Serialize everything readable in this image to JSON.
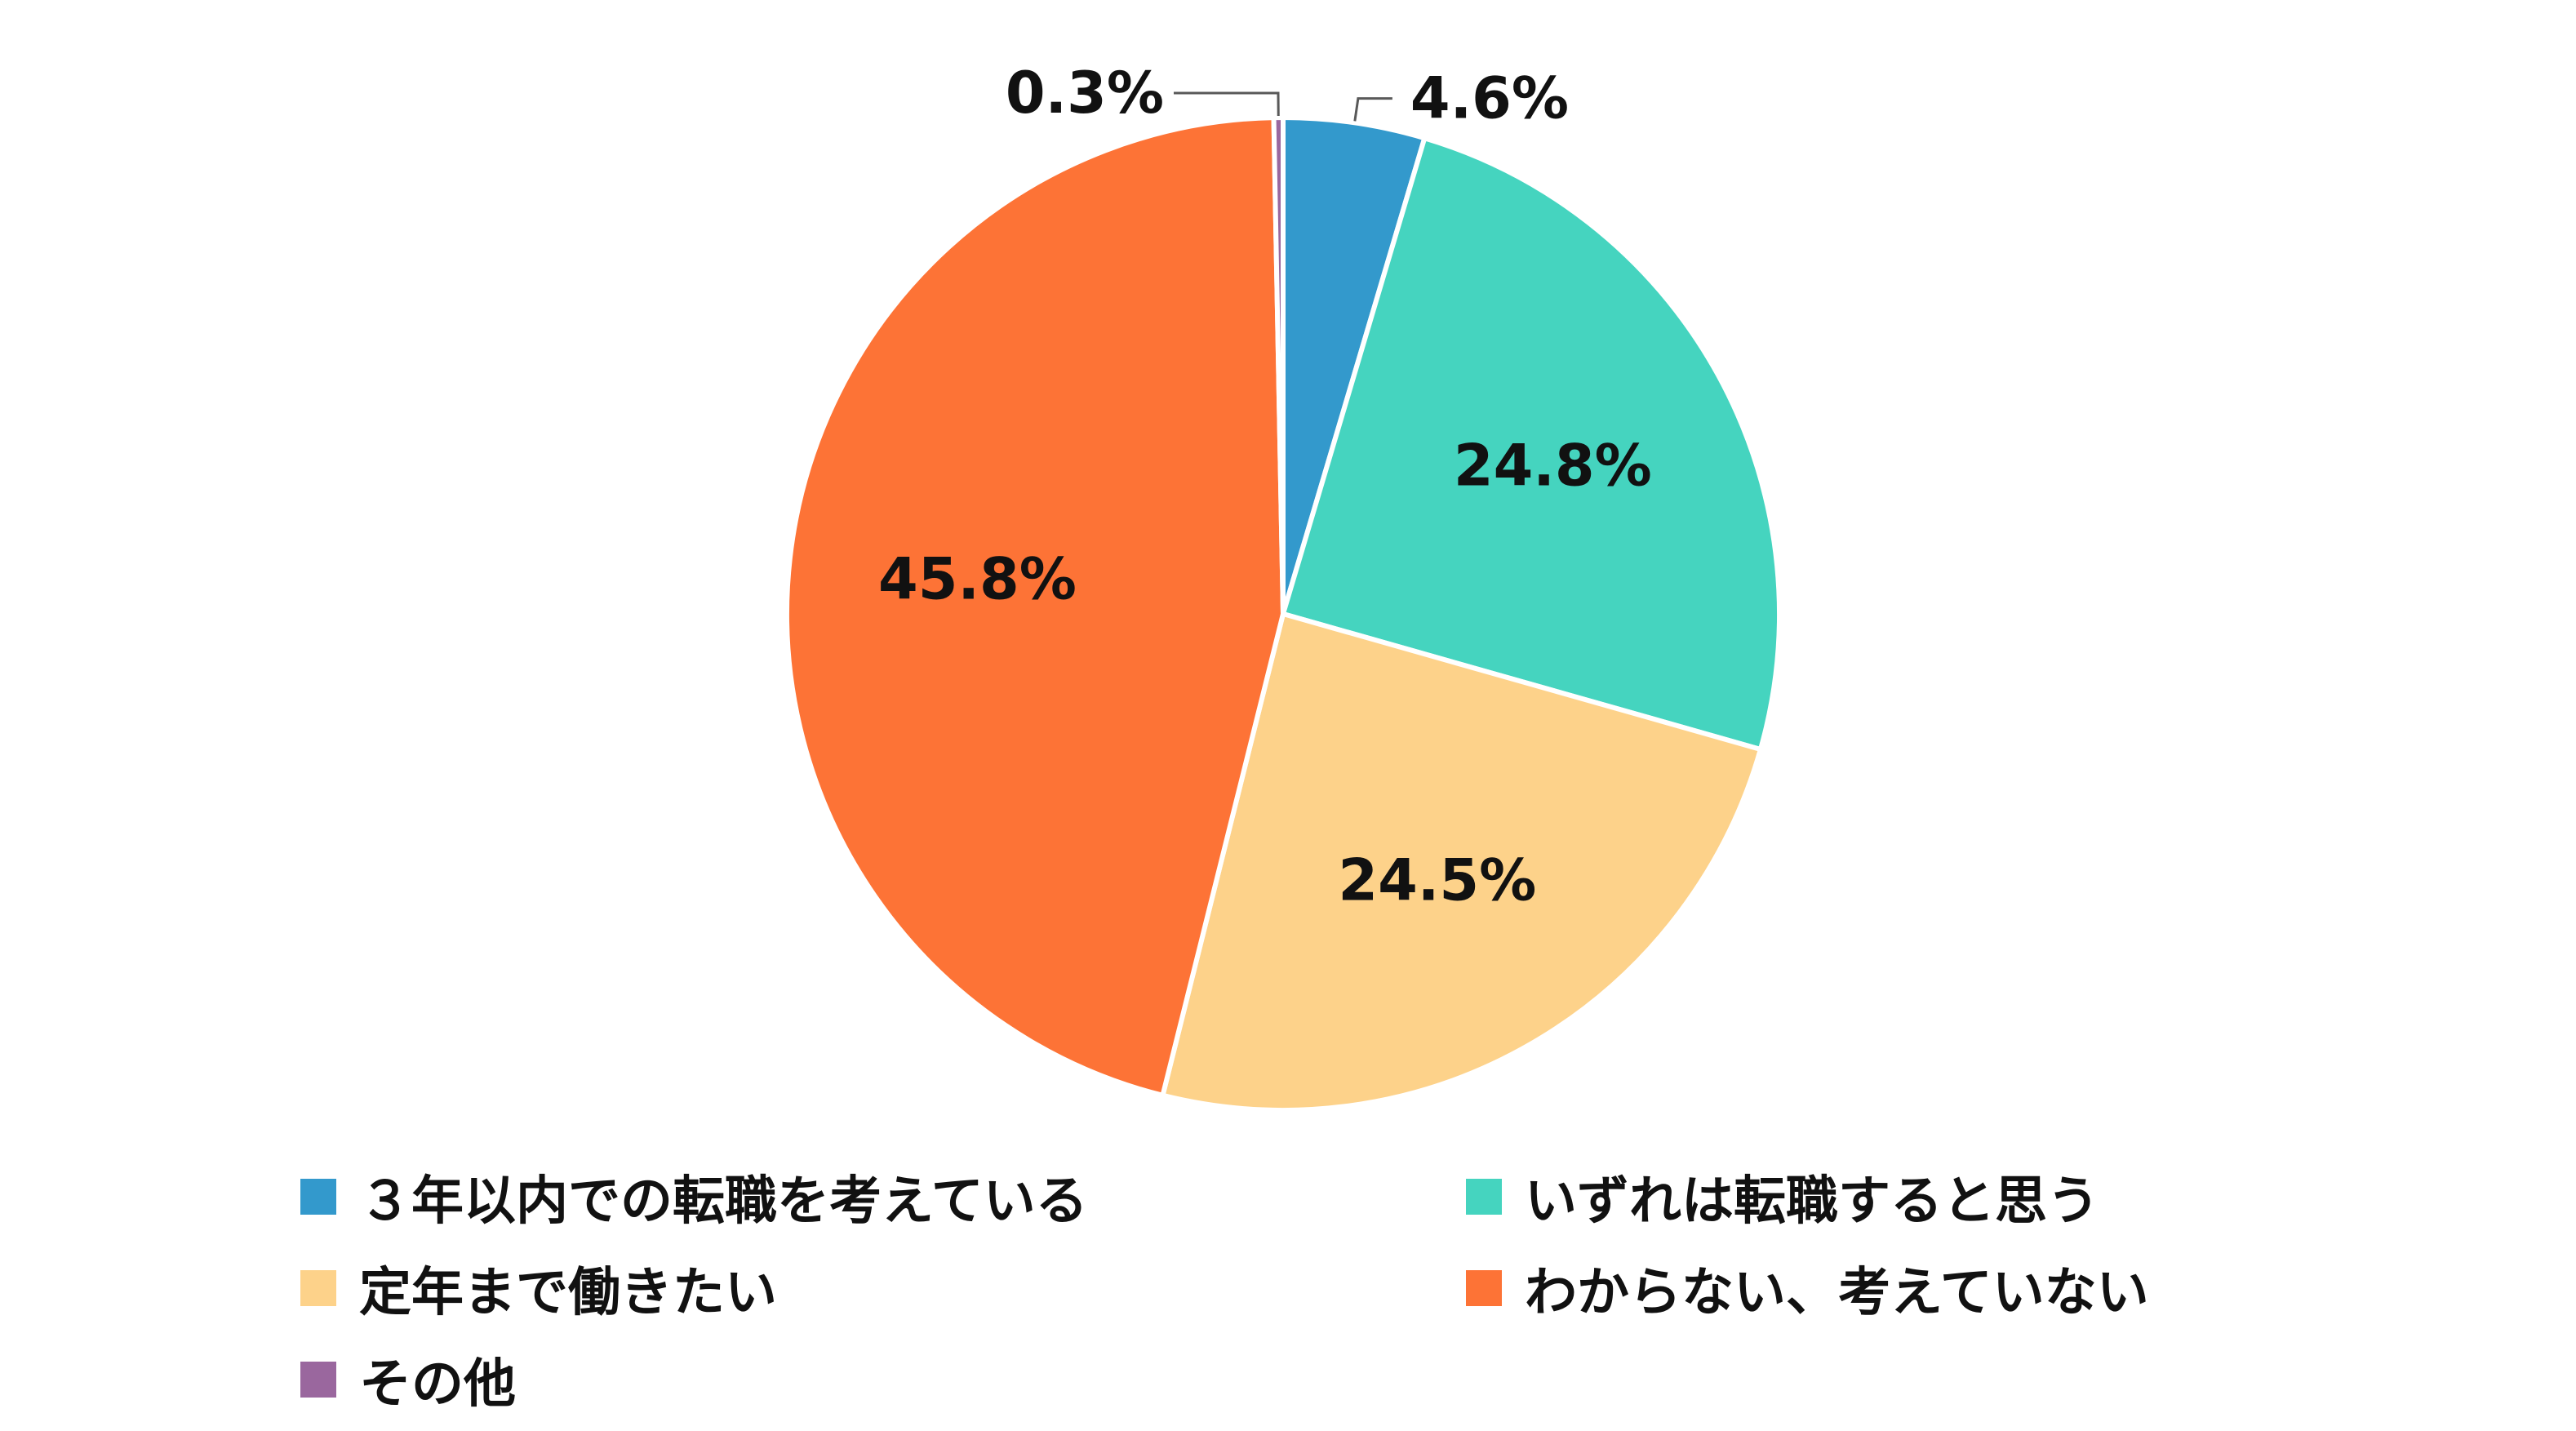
{
  "chart_data": {
    "type": "pie",
    "categories": [
      "３年以内での転職を考えている",
      "いずれは転職すると思う",
      "定年まで働きたい",
      "わからない、考えていない",
      "その他"
    ],
    "values": [
      4.6,
      24.8,
      24.5,
      45.8,
      0.3
    ],
    "value_labels": [
      "4.6%",
      "24.8%",
      "24.5%",
      "45.8%",
      "0.3%"
    ],
    "colors": [
      "#3399cc",
      "#45d4bf",
      "#fdd28a",
      "#fd7336",
      "#9a679e"
    ],
    "legend_placement": "bottom"
  }
}
